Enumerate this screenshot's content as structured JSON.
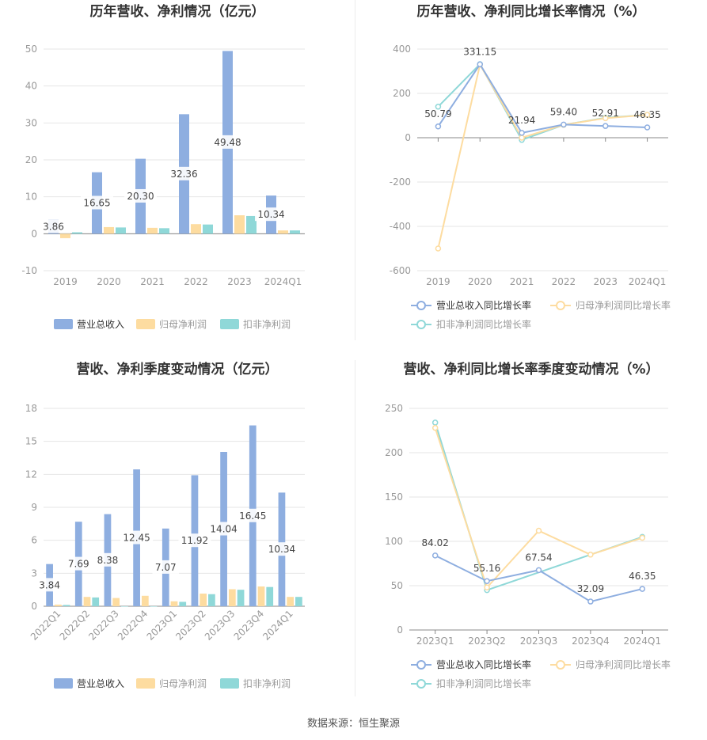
{
  "colors": {
    "revenue": "#8eaee0",
    "net_profit": "#fddca0",
    "deducted_profit": "#8fd8d8",
    "grid": "#e6e6e6",
    "axis": "#999999",
    "text": "#333333",
    "label": "#444444"
  },
  "source": "数据来源：恒生聚源",
  "chart_data": [
    {
      "id": "annual-bar",
      "type": "bar",
      "title": "历年营收、净利情况（亿元）",
      "categories": [
        "2019",
        "2020",
        "2021",
        "2022",
        "2023",
        "2024Q1"
      ],
      "ylim": [
        -10,
        50
      ],
      "yticks": [
        -10,
        0,
        10,
        20,
        30,
        40,
        50
      ],
      "series": [
        {
          "name": "营业总收入",
          "color": "#8eaee0",
          "values": [
            3.86,
            16.65,
            20.3,
            32.36,
            49.48,
            10.34
          ],
          "labels": [
            "3.86",
            "16.65",
            "20.30",
            "32.36",
            "49.48",
            "10.34"
          ]
        },
        {
          "name": "归母净利润",
          "color": "#fddca0",
          "values": [
            -1.2,
            1.8,
            1.6,
            2.6,
            5.0,
            0.9
          ]
        },
        {
          "name": "扣非净利润",
          "color": "#8fd8d8",
          "values": [
            0.4,
            1.7,
            1.5,
            2.5,
            4.8,
            0.9
          ]
        }
      ],
      "grid": true,
      "legend_position": "bottom"
    },
    {
      "id": "annual-line",
      "type": "line",
      "title": "历年营收、净利同比增长率情况（%）",
      "categories": [
        "2019",
        "2020",
        "2021",
        "2022",
        "2023",
        "2024Q1"
      ],
      "ylim": [
        -600,
        400
      ],
      "yticks": [
        -600,
        -400,
        -200,
        0,
        200,
        400
      ],
      "series": [
        {
          "name": "营业总收入同比增长率",
          "color": "#8eaee0",
          "values": [
            50.79,
            331.15,
            21.94,
            59.4,
            52.91,
            46.35
          ],
          "labels": [
            "50.79",
            "331.15",
            "21.94",
            "59.40",
            "52.91",
            "46.35"
          ]
        },
        {
          "name": "归母净利润同比增长率",
          "color": "#fddca0",
          "values": [
            -500,
            330,
            0,
            58,
            88,
            103
          ]
        },
        {
          "name": "扣非净利润同比增长率",
          "color": "#8fd8d8",
          "values": [
            140,
            332,
            -10,
            58,
            90,
            103
          ]
        }
      ],
      "grid": true,
      "legend_position": "bottom"
    },
    {
      "id": "quarterly-bar",
      "type": "bar",
      "title": "营收、净利季度变动情况（亿元）",
      "categories": [
        "2022Q1",
        "2022Q2",
        "2022Q3",
        "2022Q4",
        "2023Q1",
        "2023Q2",
        "2023Q3",
        "2023Q4",
        "2024Q1"
      ],
      "ylim": [
        0,
        18
      ],
      "yticks": [
        0,
        3,
        6,
        9,
        12,
        15,
        18
      ],
      "series": [
        {
          "name": "营业总收入",
          "color": "#8eaee0",
          "values": [
            3.84,
            7.69,
            8.38,
            12.45,
            7.07,
            11.92,
            14.04,
            16.45,
            10.34
          ],
          "labels": [
            "3.84",
            "7.69",
            "8.38",
            "12.45",
            "7.07",
            "11.92",
            "14.04",
            "16.45",
            "10.34"
          ]
        },
        {
          "name": "归母净利润",
          "color": "#fddca0",
          "values": [
            0.15,
            0.85,
            0.75,
            0.95,
            0.45,
            1.15,
            1.55,
            1.8,
            0.85
          ]
        },
        {
          "name": "扣非净利润",
          "color": "#8fd8d8",
          "values": [
            0.12,
            0.8,
            0.0,
            0.0,
            0.4,
            1.1,
            1.5,
            1.75,
            0.85
          ]
        }
      ],
      "grid": true,
      "legend_position": "bottom"
    },
    {
      "id": "quarterly-line",
      "type": "line",
      "title": "营收、净利同比增长率季度变动情况（%）",
      "categories": [
        "2023Q1",
        "2023Q2",
        "2023Q3",
        "2023Q4",
        "2024Q1"
      ],
      "ylim": [
        0,
        250
      ],
      "yticks": [
        0,
        50,
        100,
        150,
        200,
        250
      ],
      "series": [
        {
          "name": "营业总收入同比增长率",
          "color": "#8eaee0",
          "values": [
            84.02,
            55.16,
            67.54,
            32.09,
            46.35
          ],
          "labels": [
            "84.02",
            "55.16",
            "67.54",
            "32.09",
            "46.35"
          ]
        },
        {
          "name": "归母净利润同比增长率",
          "color": "#fddca0",
          "values": [
            228,
            48,
            112,
            85,
            104
          ]
        },
        {
          "name": "扣非净利润同比增长率",
          "color": "#8fd8d8",
          "values": [
            234,
            45,
            null,
            null,
            105
          ]
        }
      ],
      "grid": true,
      "legend_position": "bottom"
    }
  ]
}
